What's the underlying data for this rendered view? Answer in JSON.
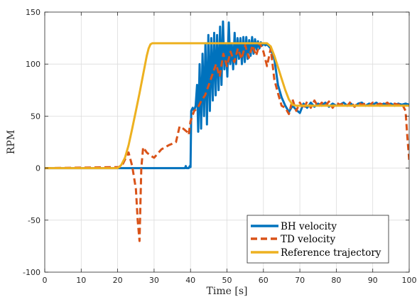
{
  "chart_data": {
    "type": "line",
    "title": "",
    "xlabel": "Time [s]",
    "ylabel": "RPM",
    "xlim": [
      0,
      100
    ],
    "ylim": [
      -100,
      150
    ],
    "xticks": [
      0,
      10,
      20,
      30,
      40,
      50,
      60,
      70,
      80,
      90,
      100
    ],
    "yticks": [
      -100,
      -50,
      0,
      50,
      100,
      150
    ],
    "grid": true,
    "legend_position": "bottom-right",
    "series": [
      {
        "name": "BH velocity",
        "color": "#0072BD",
        "style": "solid",
        "x": [
          0,
          20,
          38.5,
          38.7,
          38.9,
          39.5,
          39.8,
          40,
          40.2,
          40.6,
          41,
          41.4,
          41.8,
          42.1,
          42.5,
          42.9,
          43.3,
          43.7,
          44.1,
          44.5,
          44.9,
          45.3,
          45.7,
          46.1,
          46.5,
          46.9,
          47.3,
          47.7,
          48.1,
          48.5,
          48.9,
          49.3,
          49.7,
          50.1,
          50.5,
          50.9,
          51.3,
          51.7,
          52.1,
          52.5,
          52.9,
          53.3,
          53.7,
          54.1,
          54.5,
          54.9,
          55.3,
          55.7,
          56.1,
          56.5,
          56.9,
          57.3,
          57.7,
          58.1,
          58.5,
          58.9,
          59.3,
          59.7,
          60.1,
          60.5,
          61,
          62,
          63,
          64,
          65,
          66,
          67,
          68,
          69,
          70,
          71,
          72,
          73,
          74,
          75,
          76,
          77,
          78,
          79,
          80,
          81,
          82,
          83,
          84,
          85,
          86,
          87,
          88,
          89,
          90,
          91,
          92,
          93,
          94,
          95,
          96,
          97,
          98,
          99,
          100
        ],
        "y": [
          0,
          0,
          0,
          2,
          0,
          0,
          2,
          1,
          55,
          58,
          55,
          60,
          80,
          35,
          100,
          38,
          110,
          50,
          120,
          42,
          128,
          55,
          125,
          65,
          130,
          70,
          128,
          75,
          136,
          80,
          141,
          95,
          120,
          88,
          140,
          100,
          120,
          95,
          130,
          100,
          125,
          105,
          125,
          100,
          126,
          102,
          126,
          105,
          123,
          108,
          126,
          110,
          124,
          114,
          122,
          115,
          121,
          118,
          120,
          118,
          119,
          115,
          105,
          80,
          68,
          60,
          54,
          60,
          56,
          53,
          62,
          58,
          63,
          59,
          62,
          60,
          63,
          59,
          62,
          60,
          61,
          63,
          60,
          62,
          59,
          62,
          63,
          60,
          62,
          61,
          63,
          60,
          62,
          61,
          62,
          60,
          62,
          61,
          62,
          61
        ]
      },
      {
        "name": "TD velocity",
        "color": "#D95319",
        "style": "dashed",
        "x": [
          0,
          21,
          23,
          24,
          25,
          25.5,
          26,
          26.5,
          27,
          28,
          29,
          30,
          32,
          34,
          36,
          37,
          38,
          39,
          39.5,
          40,
          40.5,
          41,
          42,
          43,
          44,
          45,
          46,
          47,
          48,
          49,
          50,
          51,
          52,
          53,
          54,
          55,
          56,
          57,
          58,
          59,
          60,
          61,
          62,
          63,
          64,
          65,
          66,
          67,
          68,
          69,
          70,
          71,
          72,
          73,
          74,
          75,
          76,
          77,
          78,
          79,
          80,
          81,
          82,
          83,
          84,
          85,
          86,
          87,
          88,
          89,
          90,
          91,
          92,
          93,
          94,
          95,
          96,
          97,
          98,
          99,
          99.5,
          100
        ],
        "y": [
          0,
          1,
          15,
          2,
          -20,
          -50,
          -70,
          0,
          20,
          15,
          12,
          10,
          18,
          22,
          25,
          40,
          38,
          35,
          32,
          45,
          50,
          55,
          58,
          65,
          70,
          80,
          90,
          100,
          88,
          110,
          98,
          112,
          102,
          115,
          105,
          118,
          106,
          118,
          108,
          120,
          112,
          98,
          115,
          85,
          72,
          60,
          58,
          52,
          66,
          55,
          63,
          57,
          64,
          58,
          65,
          59,
          63,
          60,
          64,
          58,
          63,
          61,
          62,
          60,
          64,
          59,
          63,
          61,
          62,
          60,
          63,
          61,
          62,
          61,
          63,
          60,
          62,
          61,
          62,
          55,
          30,
          8
        ]
      },
      {
        "name": "Reference trajectory",
        "color": "#EDB120",
        "style": "solid",
        "x": [
          0,
          20,
          21,
          22,
          23,
          24,
          25,
          26,
          27,
          28,
          28.5,
          29,
          29.5,
          30,
          61,
          62,
          63,
          64,
          65,
          66,
          67,
          68,
          69,
          70,
          100
        ],
        "y": [
          0,
          0,
          3,
          10,
          22,
          38,
          55,
          72,
          90,
          108,
          115,
          119,
          120,
          120,
          120,
          117,
          108,
          97,
          86,
          75,
          66,
          61,
          60,
          60,
          60
        ]
      }
    ]
  }
}
